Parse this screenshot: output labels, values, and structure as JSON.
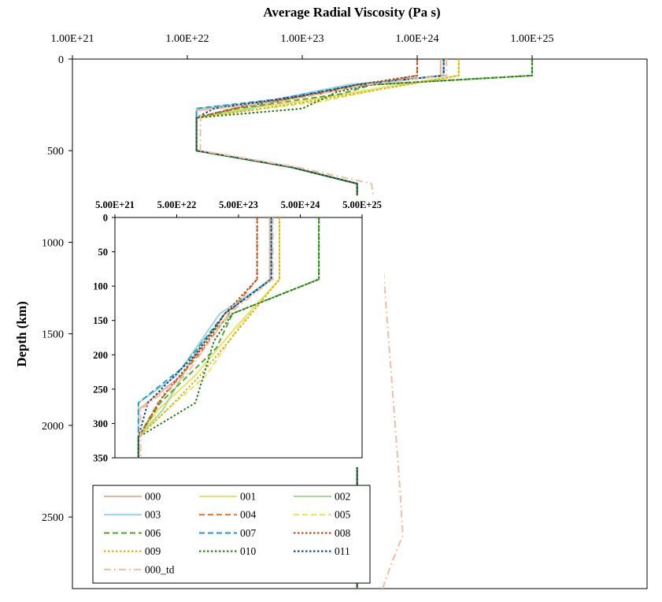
{
  "chart_data": {
    "type": "line",
    "title": "Average Radial Viscosity (Pa s)",
    "ylabel": "Depth (km)",
    "x_scale": "log",
    "x_ticks": [
      "1.00E+21",
      "1.00E+22",
      "1.00E+23",
      "1.00E+24",
      "1.00E+25"
    ],
    "x_tick_values": [
      1e+21,
      1e+22,
      1e+23,
      1e+24,
      1e+25
    ],
    "xlim": [
      1e+21,
      1e+26
    ],
    "y_ticks": [
      "0",
      "500",
      "1000",
      "1500",
      "2000",
      "2500"
    ],
    "y_tick_values": [
      0,
      500,
      1000,
      1500,
      2000,
      2500
    ],
    "ylim": [
      0,
      2891
    ],
    "y_inverted": true,
    "grid": false,
    "legend": "bottom-left",
    "series": [
      {
        "name": "000",
        "color": "#e8b49a",
        "dash": "solid",
        "points": [
          [
            1.6e+24,
            0
          ],
          [
            1.6e+24,
            90
          ],
          [
            3e+23,
            140
          ],
          [
            6e+22,
            230
          ],
          [
            1.2e+22,
            280
          ],
          [
            1.2e+22,
            320
          ],
          [
            1.2e+22,
            500
          ],
          [
            8e+22,
            590
          ],
          [
            3e+23,
            680
          ],
          [
            3e+23,
            2891
          ]
        ]
      },
      {
        "name": "001",
        "color": "#e6e36a",
        "dash": "solid",
        "points": [
          [
            2.3e+24,
            0
          ],
          [
            2.3e+24,
            90
          ],
          [
            4.5e+23,
            160
          ],
          [
            1e+23,
            230
          ],
          [
            2.5e+22,
            280
          ],
          [
            1.2e+22,
            320
          ],
          [
            1.2e+22,
            500
          ],
          [
            8e+22,
            590
          ],
          [
            3e+23,
            680
          ],
          [
            3e+23,
            2891
          ]
        ]
      },
      {
        "name": "002",
        "color": "#a8d89a",
        "dash": "solid",
        "points": [
          [
            1e+25,
            0
          ],
          [
            1e+25,
            90
          ],
          [
            4e+23,
            140
          ],
          [
            1.3e+23,
            180
          ],
          [
            3e+22,
            280
          ],
          [
            1.2e+22,
            320
          ],
          [
            1.2e+22,
            500
          ],
          [
            8e+22,
            590
          ],
          [
            3e+23,
            680
          ],
          [
            3e+23,
            2891
          ]
        ]
      },
      {
        "name": "003",
        "color": "#9fd4ea",
        "dash": "solid",
        "points": [
          [
            1.7e+24,
            0
          ],
          [
            1.7e+24,
            90
          ],
          [
            2.5e+23,
            140
          ],
          [
            5e+22,
            230
          ],
          [
            1.2e+22,
            270
          ],
          [
            1.2e+22,
            320
          ],
          [
            1.2e+22,
            500
          ],
          [
            8e+22,
            590
          ],
          [
            3e+23,
            680
          ],
          [
            3e+23,
            2891
          ]
        ]
      },
      {
        "name": "004",
        "color": "#e07a40",
        "dash": "dashed",
        "points": [
          [
            1e+24,
            0
          ],
          [
            1e+24,
            90
          ],
          [
            3.5e+23,
            140
          ],
          [
            1.4e+23,
            190
          ],
          [
            2.5e+22,
            270
          ],
          [
            1.2e+22,
            320
          ],
          [
            1.2e+22,
            500
          ],
          [
            8e+22,
            590
          ],
          [
            3e+23,
            680
          ],
          [
            3e+23,
            2891
          ]
        ]
      },
      {
        "name": "005",
        "color": "#f0e060",
        "dash": "dashed",
        "points": [
          [
            2.3e+24,
            0
          ],
          [
            2.3e+24,
            90
          ],
          [
            5e+23,
            160
          ],
          [
            1.5e+23,
            230
          ],
          [
            3.5e+22,
            280
          ],
          [
            1.2e+22,
            320
          ],
          [
            1.2e+22,
            500
          ],
          [
            8e+22,
            590
          ],
          [
            3e+23,
            680
          ],
          [
            3e+23,
            2891
          ]
        ]
      },
      {
        "name": "006",
        "color": "#5aa83c",
        "dash": "dashed",
        "points": [
          [
            1e+25,
            0
          ],
          [
            1e+25,
            90
          ],
          [
            4e+23,
            140
          ],
          [
            2.2e+23,
            190
          ],
          [
            2.7e+22,
            270
          ],
          [
            1.2e+22,
            320
          ],
          [
            1.2e+22,
            500
          ],
          [
            8e+22,
            590
          ],
          [
            3e+23,
            680
          ],
          [
            3e+23,
            2891
          ]
        ]
      },
      {
        "name": "007",
        "color": "#2aa0c8",
        "dash": "dashed",
        "points": [
          [
            1.7e+24,
            0
          ],
          [
            1.7e+24,
            90
          ],
          [
            3e+23,
            140
          ],
          [
            6e+22,
            220
          ],
          [
            1.2e+22,
            270
          ],
          [
            1.2e+22,
            320
          ],
          [
            1.2e+22,
            500
          ],
          [
            8e+22,
            590
          ],
          [
            3e+23,
            680
          ],
          [
            3e+23,
            2891
          ]
        ]
      },
      {
        "name": "008",
        "color": "#b84a1e",
        "dash": "dotted",
        "points": [
          [
            1e+24,
            0
          ],
          [
            1e+24,
            90
          ],
          [
            3e+23,
            140
          ],
          [
            1.6e+23,
            180
          ],
          [
            3e+22,
            260
          ],
          [
            1.2e+22,
            320
          ],
          [
            1.2e+22,
            500
          ],
          [
            8e+22,
            590
          ],
          [
            3e+23,
            680
          ],
          [
            3e+23,
            2891
          ]
        ]
      },
      {
        "name": "009",
        "color": "#d2b21c",
        "dash": "dotted",
        "points": [
          [
            2.3e+24,
            0
          ],
          [
            2.3e+24,
            90
          ],
          [
            3.5e+23,
            180
          ],
          [
            1.2e+23,
            230
          ],
          [
            3.5e+22,
            280
          ],
          [
            1.2e+22,
            320
          ],
          [
            1.2e+22,
            500
          ],
          [
            8e+22,
            590
          ],
          [
            3e+23,
            680
          ],
          [
            3e+23,
            2891
          ]
        ]
      },
      {
        "name": "010",
        "color": "#2e7a22",
        "dash": "dotted",
        "points": [
          [
            1e+25,
            0
          ],
          [
            1e+25,
            90
          ],
          [
            4e+23,
            140
          ],
          [
            2e+23,
            180
          ],
          [
            1e+23,
            270
          ],
          [
            1.2e+22,
            320
          ],
          [
            1.2e+22,
            500
          ],
          [
            8e+22,
            590
          ],
          [
            3e+23,
            680
          ],
          [
            3e+23,
            2891
          ]
        ]
      },
      {
        "name": "011",
        "color": "#13456e",
        "dash": "dotted",
        "points": [
          [
            1.7e+24,
            0
          ],
          [
            1.7e+24,
            90
          ],
          [
            3e+23,
            140
          ],
          [
            1e+23,
            200
          ],
          [
            1.7e+22,
            270
          ],
          [
            1.2e+22,
            320
          ],
          [
            1.2e+22,
            500
          ],
          [
            8e+22,
            590
          ],
          [
            3e+23,
            680
          ],
          [
            3e+23,
            2891
          ]
        ]
      },
      {
        "name": "000_td",
        "color": "#efc1a6",
        "dash": "dashdot",
        "points": [
          [
            1.8e+24,
            0
          ],
          [
            1.8e+24,
            90
          ],
          [
            3.5e+23,
            140
          ],
          [
            7e+22,
            230
          ],
          [
            1.3e+22,
            280
          ],
          [
            1.3e+22,
            320
          ],
          [
            1.3e+22,
            500
          ],
          [
            9e+22,
            590
          ],
          [
            4e+23,
            680
          ],
          [
            5e+23,
            1100
          ],
          [
            7e+23,
            2300
          ],
          [
            7.5e+23,
            2600
          ],
          [
            6e+23,
            2750
          ],
          [
            5e+23,
            2891
          ]
        ]
      }
    ],
    "inset": {
      "x_scale": "log",
      "x_ticks": [
        "5.00E+21",
        "5.00E+22",
        "5.00E+23",
        "5.00E+24",
        "5.00E+25"
      ],
      "x_tick_values": [
        5e+21,
        5e+22,
        5e+23,
        5e+24,
        5e+25
      ],
      "xlim": [
        5e+21,
        5e+25
      ],
      "y_ticks": [
        "0",
        "50",
        "100",
        "150",
        "200",
        "250",
        "300",
        "350"
      ],
      "y_tick_values": [
        0,
        50,
        100,
        150,
        200,
        250,
        300,
        350
      ],
      "ylim": [
        0,
        350
      ],
      "y_inverted": true
    }
  }
}
